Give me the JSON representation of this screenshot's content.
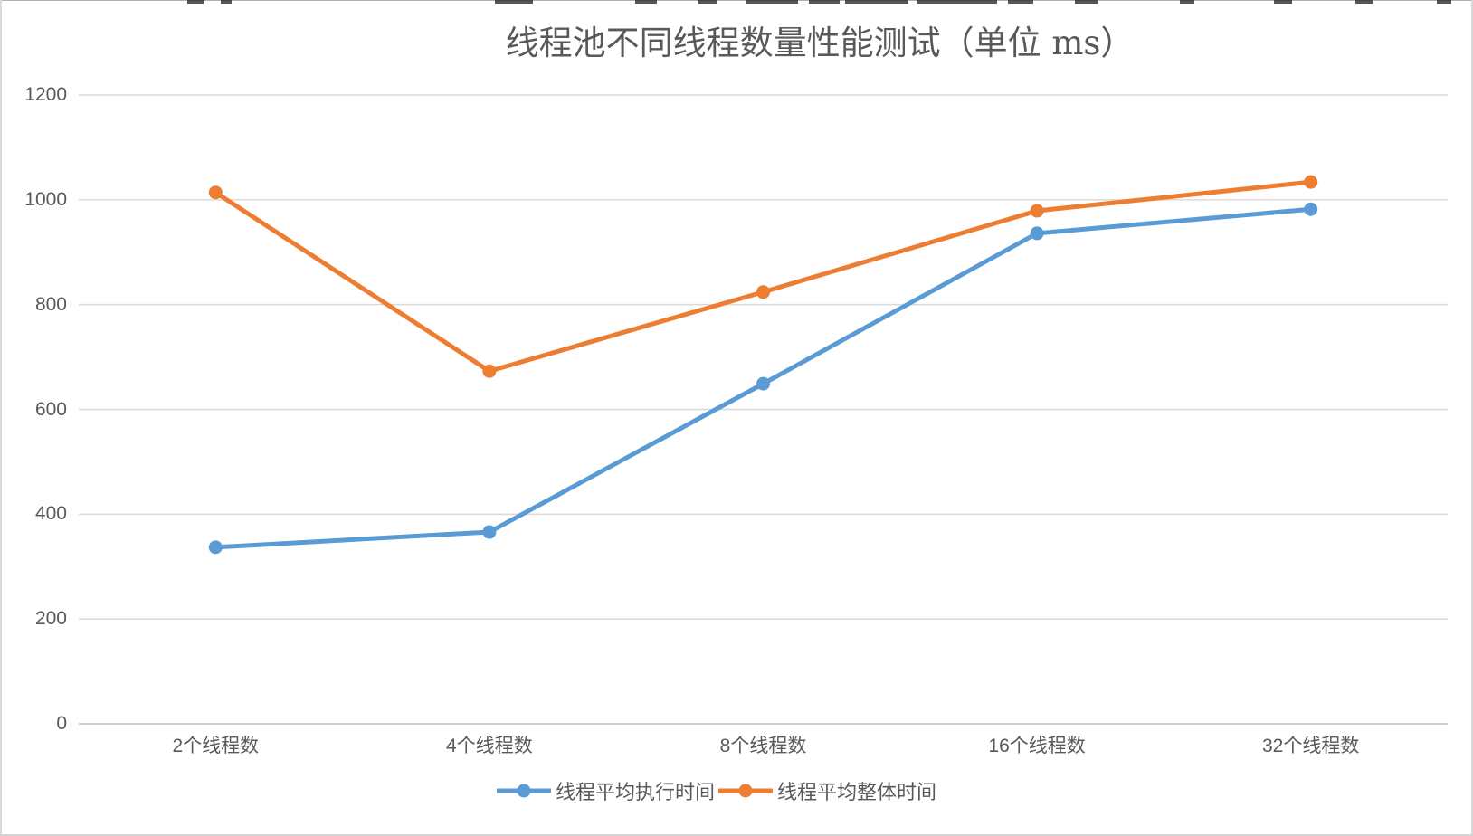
{
  "chart_data": {
    "type": "line",
    "title": "线程池不同线程数量性能测试（单位 ms）",
    "categories": [
      "2个线程数",
      "4个线程数",
      "8个线程数",
      "16个线程数",
      "32个线程数"
    ],
    "series": [
      {
        "name": "线程平均执行时间",
        "color": "#5B9BD5",
        "values": [
          337,
          366,
          649,
          936,
          982
        ]
      },
      {
        "name": "线程平均整体时间",
        "color": "#ED7D31",
        "values": [
          1014,
          673,
          824,
          979,
          1034
        ]
      }
    ],
    "xlabel": "",
    "ylabel": "",
    "ylim": [
      0,
      1200
    ],
    "yticks": [
      0,
      200,
      400,
      600,
      800,
      1000,
      1200
    ],
    "grid": true,
    "legend_position": "bottom",
    "marker": "circle"
  },
  "colors": {
    "grid_line": "#D9D9D9",
    "axis_line": "#BFBFBF",
    "axis_text": "#595959",
    "title_text": "#595959",
    "frame_border": "#D9D9D9",
    "background": "#FFFFFF"
  }
}
